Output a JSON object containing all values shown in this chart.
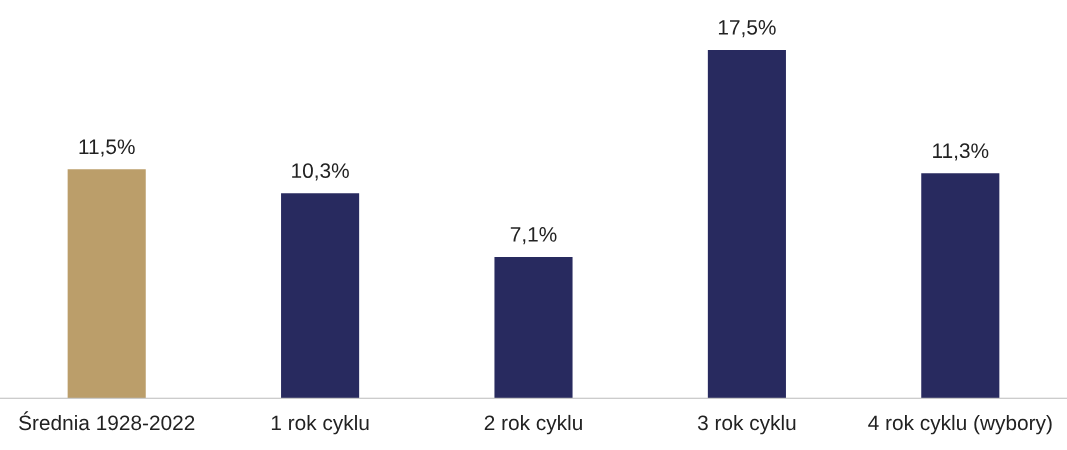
{
  "chart_data": {
    "type": "bar",
    "categories": [
      "Średnia 1928-2022",
      "1 rok cyklu",
      "2 rok cyklu",
      "3 rok cyklu",
      "4 rok cyklu (wybory)"
    ],
    "values": [
      11.5,
      10.3,
      7.1,
      17.5,
      11.3
    ],
    "colors": [
      "#bb9e6a",
      "#282a5f",
      "#282a5f",
      "#282a5f",
      "#282a5f"
    ],
    "value_labels": [
      "11,5%",
      "10,3%",
      "7,1%",
      "17,5%",
      "11,3%"
    ],
    "tick_labels": "x"
  }
}
